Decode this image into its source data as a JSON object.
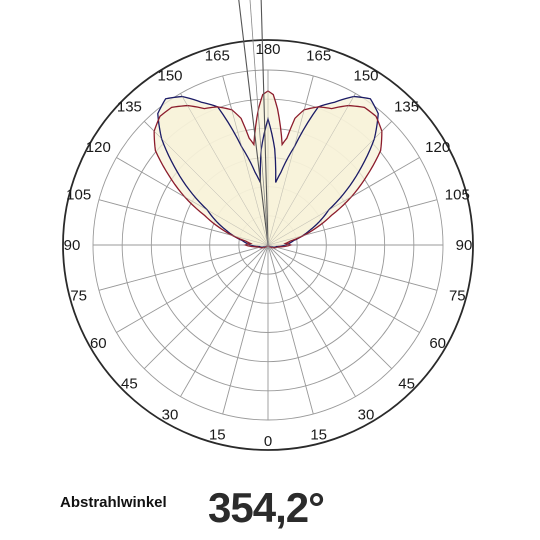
{
  "chart_data": {
    "type": "polar-area",
    "angular_tick_labels": [
      "180",
      "165",
      "150",
      "135",
      "120",
      "105",
      "90",
      "75",
      "60",
      "45",
      "30",
      "15",
      "0",
      "15",
      "30",
      "45",
      "60",
      "75",
      "90",
      "105",
      "120",
      "135",
      "150",
      "165"
    ],
    "angular_ticks_deg": [
      180,
      165,
      150,
      135,
      120,
      105,
      90,
      75,
      60,
      45,
      30,
      15,
      0,
      -15,
      -30,
      -45,
      -60,
      -75,
      -90,
      -105,
      -120,
      -135,
      -150,
      -165
    ],
    "radial_rings": 6,
    "radial_max": 1.0,
    "grid": true,
    "series": [
      {
        "color": "#1b1b66",
        "fill": "#f7f2d8",
        "values_deg_r": [
          [
            0,
            0.0
          ],
          [
            30,
            0.0
          ],
          [
            60,
            0.02
          ],
          [
            80,
            0.05
          ],
          [
            90,
            0.1
          ],
          [
            100,
            0.15
          ],
          [
            110,
            0.26
          ],
          [
            115,
            0.33
          ],
          [
            120,
            0.4
          ],
          [
            125,
            0.55
          ],
          [
            130,
            0.7
          ],
          [
            135,
            0.86
          ],
          [
            140,
            0.98
          ],
          [
            145,
            1.02
          ],
          [
            150,
            0.98
          ],
          [
            155,
            0.9
          ],
          [
            160,
            0.84
          ],
          [
            165,
            0.58
          ],
          [
            170,
            0.42
          ],
          [
            173,
            0.36
          ],
          [
            176,
            0.55
          ],
          [
            180,
            0.72
          ]
        ]
      },
      {
        "color": "#8c1c2c",
        "fill": "#f7f2d8",
        "values_deg_r": [
          [
            0,
            0.0
          ],
          [
            30,
            0.0
          ],
          [
            60,
            0.03
          ],
          [
            80,
            0.06
          ],
          [
            90,
            0.13
          ],
          [
            95,
            0.1
          ],
          [
            100,
            0.13
          ],
          [
            105,
            0.21
          ],
          [
            110,
            0.3
          ],
          [
            115,
            0.4
          ],
          [
            120,
            0.55
          ],
          [
            125,
            0.69
          ],
          [
            130,
            0.84
          ],
          [
            135,
            0.92
          ],
          [
            140,
            0.96
          ],
          [
            145,
            0.96
          ],
          [
            150,
            0.92
          ],
          [
            155,
            0.86
          ],
          [
            160,
            0.84
          ],
          [
            165,
            0.8
          ],
          [
            168,
            0.74
          ],
          [
            170,
            0.62
          ],
          [
            172,
            0.58
          ],
          [
            174,
            0.68
          ],
          [
            176,
            0.78
          ],
          [
            178,
            0.86
          ],
          [
            180,
            0.88
          ]
        ]
      }
    ]
  },
  "caption": {
    "label": "Abstrahlwinkel",
    "angle_value": "354,2°"
  }
}
